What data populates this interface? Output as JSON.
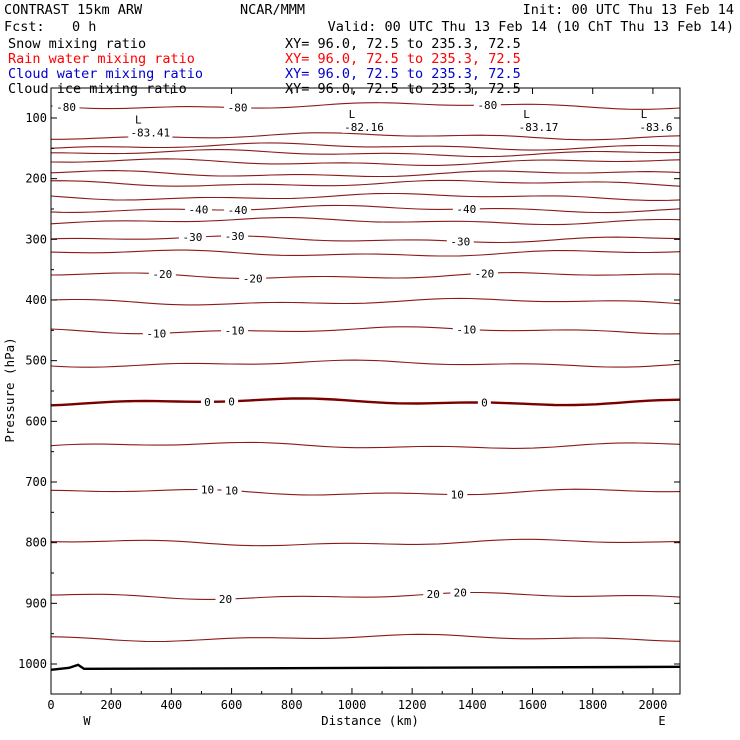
{
  "header": {
    "title": "CONTRAST 15km ARW",
    "org": "NCAR/MMM",
    "init": "Init: 00 UTC Thu 13 Feb 14",
    "fcst_label": "Fcst:",
    "fcst_value": "0 h",
    "valid": "Valid: 00 UTC Thu 13 Feb 14 (10 ChT Thu 13 Feb 14)"
  },
  "fields": [
    {
      "label": "Snow mixing ratio",
      "xy": "XY=  96.0, 72.5 to 235.3, 72.5",
      "color": "#000000"
    },
    {
      "label": "Rain water mixing ratio",
      "xy": "XY=  96.0, 72.5 to 235.3, 72.5",
      "color": "#ff0000"
    },
    {
      "label": "Cloud water mixing ratio",
      "xy": "XY=  96.0, 72.5 to 235.3, 72.5",
      "color": "#0000cc"
    },
    {
      "label": "Cloud ice mixing ratio",
      "xy": "XY=  96.0, 72.5 to 235.3, 72.5",
      "color": "#000000"
    }
  ],
  "colors": {
    "contour": "#8b1a1a",
    "zero_contour": "#7a0000",
    "terrain": "#000000",
    "axes": "#000000"
  },
  "chart_data": {
    "type": "contour",
    "xlabel": "Distance (km)",
    "ylabel": "Pressure (hPa)",
    "xlim": [
      0,
      2090
    ],
    "ylim": [
      1050,
      70
    ],
    "xticks": [
      0,
      200,
      400,
      600,
      800,
      1000,
      1200,
      1400,
      1600,
      1800,
      2000
    ],
    "yticks": [
      100,
      200,
      300,
      400,
      500,
      600,
      700,
      800,
      900,
      1000
    ],
    "end_labels": {
      "left": "W",
      "right": "E"
    },
    "contour_interval_c": 5,
    "isotherms": [
      {
        "level": -80,
        "p": 80,
        "label_text": "-80",
        "label_x": [
          50,
          620,
          1450
        ]
      },
      {
        "level": -75,
        "p": 130,
        "label_text": "",
        "label_x": []
      },
      {
        "level": -70,
        "p": 147,
        "label_text": "",
        "label_x": []
      },
      {
        "level": -65,
        "p": 158,
        "label_text": "",
        "label_x": []
      },
      {
        "level": -60,
        "p": 173,
        "label_text": "",
        "label_x": []
      },
      {
        "level": -55,
        "p": 192,
        "label_text": "",
        "label_x": []
      },
      {
        "level": -50,
        "p": 208,
        "label_text": "",
        "label_x": []
      },
      {
        "level": -45,
        "p": 230,
        "label_text": "",
        "label_x": []
      },
      {
        "level": -40,
        "p": 250,
        "label_text": "-40",
        "label_x": [
          490,
          620,
          1380
        ]
      },
      {
        "level": -35,
        "p": 270,
        "label_text": "",
        "label_x": []
      },
      {
        "level": -30,
        "p": 300,
        "label_text": "-30",
        "label_x": [
          470,
          610,
          1360
        ]
      },
      {
        "level": -25,
        "p": 323,
        "label_text": "",
        "label_x": []
      },
      {
        "level": -20,
        "p": 360,
        "label_text": "-20",
        "label_x": [
          370,
          670,
          1440
        ]
      },
      {
        "level": -15,
        "p": 403,
        "label_text": "",
        "label_x": []
      },
      {
        "level": -10,
        "p": 450,
        "label_text": "-10",
        "label_x": [
          350,
          610,
          1380
        ]
      },
      {
        "level": -5,
        "p": 505,
        "label_text": "",
        "label_x": []
      },
      {
        "level": 0,
        "p": 568,
        "label_text": "0",
        "label_x": [
          520,
          600,
          1440
        ]
      },
      {
        "level": 5,
        "p": 640,
        "label_text": "",
        "label_x": []
      },
      {
        "level": 10,
        "p": 717,
        "label_text": "10",
        "label_x": [
          520,
          600,
          1350
        ]
      },
      {
        "level": 15,
        "p": 800,
        "label_text": "",
        "label_x": []
      },
      {
        "level": 20,
        "p": 888,
        "label_text": "20",
        "label_x": [
          580,
          1270,
          1360
        ]
      },
      {
        "level": 25,
        "p": 957,
        "label_text": "",
        "label_x": []
      }
    ],
    "surface_pressure_hpa": 1008,
    "minima": [
      {
        "label": "L",
        "value": "-83.41",
        "x": 330,
        "p": 112
      },
      {
        "label": "L",
        "value": "-82.16",
        "x": 1040,
        "p": 103
      },
      {
        "label": "L",
        "value": "-83.17",
        "x": 1620,
        "p": 103
      },
      {
        "label": "L",
        "value": "-83.6",
        "x": 2010,
        "p": 103
      }
    ]
  }
}
